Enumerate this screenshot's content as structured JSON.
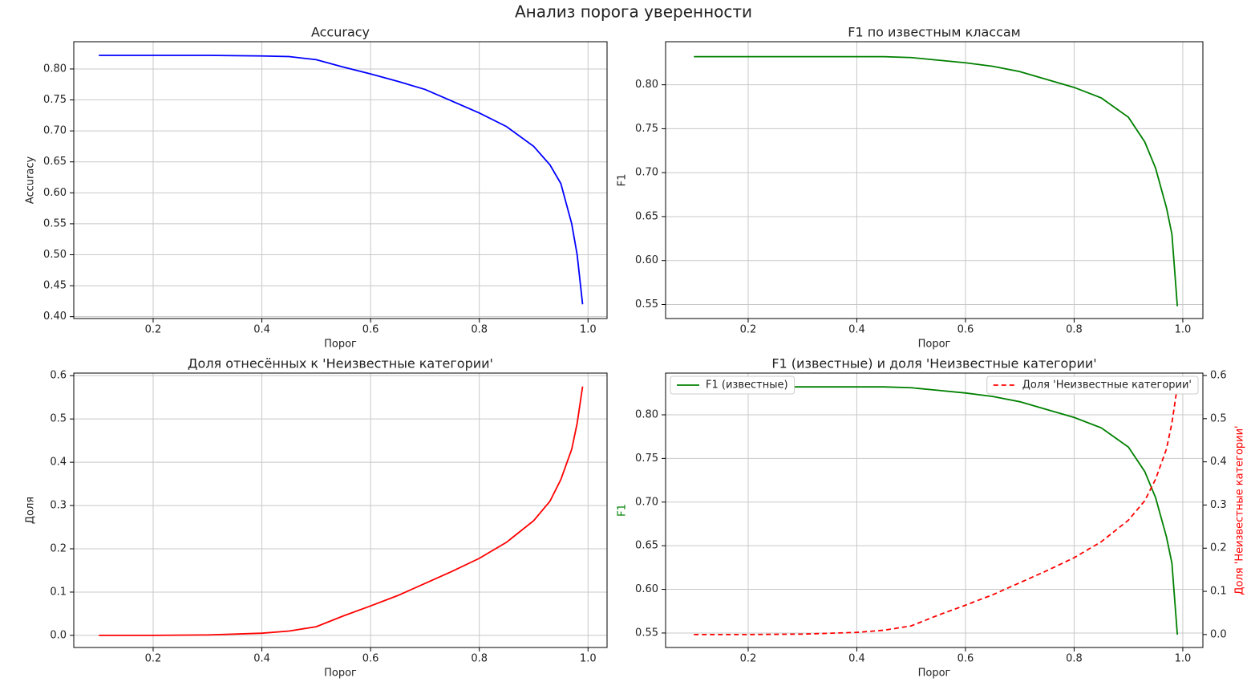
{
  "title": "Анализ порога уверенности",
  "chart_data": [
    {
      "type": "line",
      "title": "Accuracy",
      "xlabel": "Порог",
      "ylabel": "Accuracy",
      "x": [
        0.1,
        0.2,
        0.3,
        0.4,
        0.45,
        0.5,
        0.55,
        0.6,
        0.65,
        0.7,
        0.75,
        0.8,
        0.85,
        0.9,
        0.93,
        0.95,
        0.97,
        0.98,
        0.99
      ],
      "values": [
        0.822,
        0.822,
        0.822,
        0.821,
        0.82,
        0.815,
        0.803,
        0.792,
        0.78,
        0.767,
        0.748,
        0.729,
        0.707,
        0.675,
        0.645,
        0.615,
        0.55,
        0.5,
        0.42
      ],
      "color": "blue",
      "grid": true,
      "xlim": [
        0.054,
        1.035
      ],
      "xticks": [
        0.2,
        0.4,
        0.6,
        0.8,
        {
          "value": 1,
          "label": "1.0"
        }
      ],
      "ylim": [
        0.397,
        0.844
      ],
      "yticks": [
        {
          "value": 0.4,
          "label": "0.40"
        },
        0.45,
        {
          "value": 0.5,
          "label": "0.50"
        },
        0.55,
        {
          "value": 0.6,
          "label": "0.60"
        },
        0.65,
        {
          "value": 0.7,
          "label": "0.70"
        },
        0.75,
        {
          "value": 0.8,
          "label": "0.80"
        }
      ]
    },
    {
      "type": "line",
      "title": "F1 по известным классам",
      "xlabel": "Порог",
      "ylabel": "F1",
      "x": [
        0.1,
        0.2,
        0.3,
        0.4,
        0.45,
        0.5,
        0.55,
        0.6,
        0.65,
        0.7,
        0.75,
        0.8,
        0.85,
        0.9,
        0.93,
        0.95,
        0.97,
        0.98,
        0.99
      ],
      "values": [
        0.832,
        0.832,
        0.832,
        0.832,
        0.832,
        0.831,
        0.828,
        0.825,
        0.821,
        0.815,
        0.806,
        0.797,
        0.785,
        0.763,
        0.735,
        0.705,
        0.66,
        0.63,
        0.548
      ],
      "color": "green",
      "grid": true,
      "xlim": [
        0.048,
        1.037
      ],
      "xticks": [
        0.2,
        0.4,
        0.6,
        0.8,
        {
          "value": 1,
          "label": "1.0"
        }
      ],
      "ylim": [
        0.534,
        0.849
      ],
      "yticks": [
        0.55,
        {
          "value": 0.6,
          "label": "0.60"
        },
        0.65,
        {
          "value": 0.7,
          "label": "0.70"
        },
        0.75,
        {
          "value": 0.8,
          "label": "0.80"
        }
      ]
    },
    {
      "type": "line",
      "title": "Доля отнесённых к 'Неизвестные категории'",
      "xlabel": "Порог",
      "ylabel": "Доля",
      "x": [
        0.1,
        0.2,
        0.3,
        0.4,
        0.45,
        0.5,
        0.55,
        0.6,
        0.65,
        0.7,
        0.75,
        0.8,
        0.85,
        0.9,
        0.93,
        0.95,
        0.97,
        0.98,
        0.99
      ],
      "values": [
        0,
        0,
        0.001,
        0.005,
        0.01,
        0.02,
        0.045,
        0.068,
        0.092,
        0.12,
        0.148,
        0.178,
        0.215,
        0.265,
        0.31,
        0.36,
        0.43,
        0.49,
        0.575
      ],
      "color": "red",
      "grid": true,
      "xlim": [
        0.054,
        1.035
      ],
      "xticks": [
        0.2,
        0.4,
        0.6,
        0.8,
        {
          "value": 1,
          "label": "1.0"
        }
      ],
      "ylim": [
        -0.028,
        0.606
      ],
      "yticks": [
        {
          "value": 0,
          "label": "0.0"
        },
        0.1,
        0.2,
        0.3,
        0.4,
        0.5,
        0.6
      ]
    },
    {
      "type": "line",
      "title": "F1 (известные) и доля 'Неизвестные категории'",
      "xlabel": "Порог",
      "ylabel": "F1",
      "ylabel_color": "green",
      "y2label": "Доля 'Неизвестные категории'",
      "y2label_color": "red",
      "x": [
        0.1,
        0.2,
        0.3,
        0.4,
        0.45,
        0.5,
        0.55,
        0.6,
        0.65,
        0.7,
        0.75,
        0.8,
        0.85,
        0.9,
        0.93,
        0.95,
        0.97,
        0.98,
        0.99
      ],
      "series": [
        {
          "name": "F1 (известные)",
          "color": "green",
          "linestyle": "solid",
          "legend": "upper left",
          "values": [
            0.832,
            0.832,
            0.832,
            0.832,
            0.832,
            0.831,
            0.828,
            0.825,
            0.821,
            0.815,
            0.806,
            0.797,
            0.785,
            0.763,
            0.735,
            0.705,
            0.66,
            0.63,
            0.548
          ]
        },
        {
          "name": "Доля 'Неизвестные категории'",
          "color": "red",
          "linestyle": "dashed",
          "legend": "upper right",
          "axis": "y2",
          "values": [
            0,
            0,
            0.001,
            0.005,
            0.01,
            0.02,
            0.045,
            0.068,
            0.092,
            0.12,
            0.148,
            0.178,
            0.215,
            0.265,
            0.31,
            0.36,
            0.43,
            0.49,
            0.575
          ]
        }
      ],
      "grid": true,
      "xlim": [
        0.048,
        1.037
      ],
      "xticks": [
        0.2,
        0.4,
        0.6,
        0.8,
        {
          "value": 1,
          "label": "1.0"
        }
      ],
      "ylim": [
        0.5334,
        0.8478
      ],
      "yticks": [
        0.55,
        {
          "value": 0.6,
          "label": "0.60"
        },
        0.65,
        {
          "value": 0.7,
          "label": "0.70"
        },
        0.75,
        {
          "value": 0.8,
          "label": "0.80"
        }
      ],
      "y2lim": [
        -0.03,
        0.6056
      ],
      "y2ticks": [
        {
          "value": 0,
          "label": "0.0"
        },
        0.1,
        0.2,
        0.3,
        0.4,
        0.5,
        0.6
      ]
    }
  ]
}
